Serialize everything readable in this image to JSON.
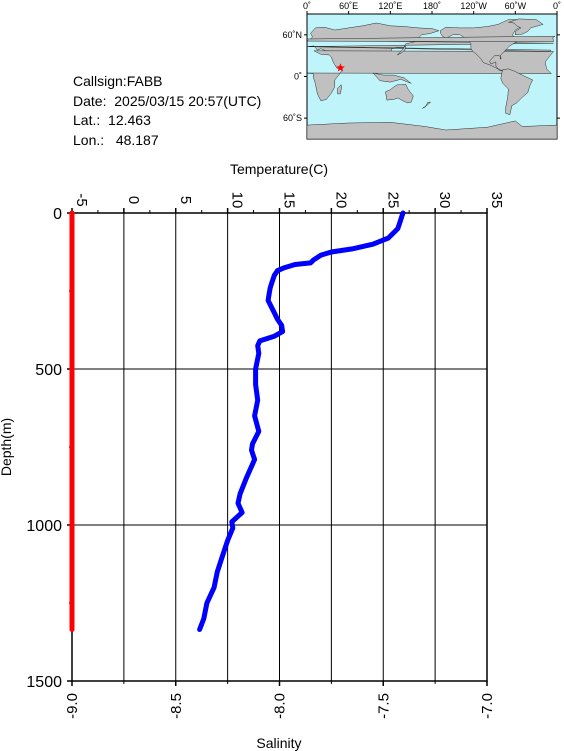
{
  "station": {
    "callsign_label": "Callsign:",
    "callsign": "FABB",
    "date_label": "Date:",
    "date": "2025/03/15 20:57(UTC)",
    "lat_label": "Lat.:",
    "lat": "12.463",
    "lon_label": "Lon.:",
    "lon": "48.187"
  },
  "map": {
    "top_labels": [
      "0˚",
      "60˚E",
      "120˚E",
      "180˚",
      "120˚W",
      "60˚W",
      "0˚"
    ],
    "lat_labels": [
      "60˚N",
      "0˚",
      "60˚S"
    ],
    "ocean_color": "#bff5fa",
    "land_color": "#c0c0c0",
    "marker_color": "#ff0000",
    "marker": {
      "lon": 48.187,
      "lat": 12.463
    }
  },
  "chart_data": {
    "type": "line",
    "y_axis": {
      "label": "Depth(m)",
      "range": [
        0,
        1500
      ],
      "ticks": [
        "0",
        "500",
        "1000",
        "1500"
      ],
      "inverted": true
    },
    "x_axis_top": {
      "label": "Temperature(C)",
      "range": [
        -5,
        35
      ],
      "ticks": [
        "-5",
        "0",
        "5",
        "10",
        "15",
        "20",
        "25",
        "30",
        "35"
      ]
    },
    "x_axis_bottom": {
      "label": "Salinity",
      "range": [
        -9.0,
        -7.0
      ],
      "ticks": [
        "-9.0",
        "-8.5",
        "-8.0",
        "-7.5",
        "-7.0"
      ]
    },
    "grid": true,
    "series": [
      {
        "axis": "temperature",
        "color": "#0000ff",
        "points": [
          [
            26.9,
            0
          ],
          [
            26.8,
            10
          ],
          [
            26.6,
            30
          ],
          [
            26.4,
            50
          ],
          [
            25.5,
            80
          ],
          [
            24.0,
            100
          ],
          [
            22.0,
            115
          ],
          [
            20.0,
            125
          ],
          [
            19.0,
            135
          ],
          [
            18.3,
            150
          ],
          [
            18.0,
            160
          ],
          [
            16.5,
            165
          ],
          [
            15.5,
            175
          ],
          [
            14.8,
            185
          ],
          [
            14.5,
            200
          ],
          [
            14.3,
            220
          ],
          [
            14.1,
            240
          ],
          [
            14.0,
            260
          ],
          [
            13.9,
            280
          ],
          [
            14.2,
            300
          ],
          [
            14.5,
            320
          ],
          [
            14.8,
            340
          ],
          [
            15.2,
            360
          ],
          [
            15.3,
            380
          ],
          [
            14.5,
            395
          ],
          [
            13.1,
            410
          ],
          [
            12.9,
            425
          ],
          [
            13.0,
            450
          ],
          [
            12.7,
            500
          ],
          [
            12.7,
            550
          ],
          [
            12.9,
            600
          ],
          [
            12.6,
            650
          ],
          [
            13.0,
            700
          ],
          [
            12.4,
            740
          ],
          [
            12.3,
            760
          ],
          [
            12.6,
            790
          ],
          [
            11.8,
            850
          ],
          [
            11.2,
            900
          ],
          [
            11.0,
            930
          ],
          [
            11.4,
            960
          ],
          [
            10.4,
            990
          ],
          [
            10.5,
            1010
          ],
          [
            10.0,
            1050
          ],
          [
            9.5,
            1100
          ],
          [
            9.0,
            1150
          ],
          [
            8.7,
            1200
          ],
          [
            8.0,
            1250
          ],
          [
            7.7,
            1300
          ],
          [
            7.3,
            1335
          ]
        ]
      },
      {
        "axis": "salinity",
        "color": "#ff0000",
        "points": [
          [
            -9.0,
            0
          ],
          [
            -9.0,
            1335
          ]
        ]
      }
    ]
  }
}
